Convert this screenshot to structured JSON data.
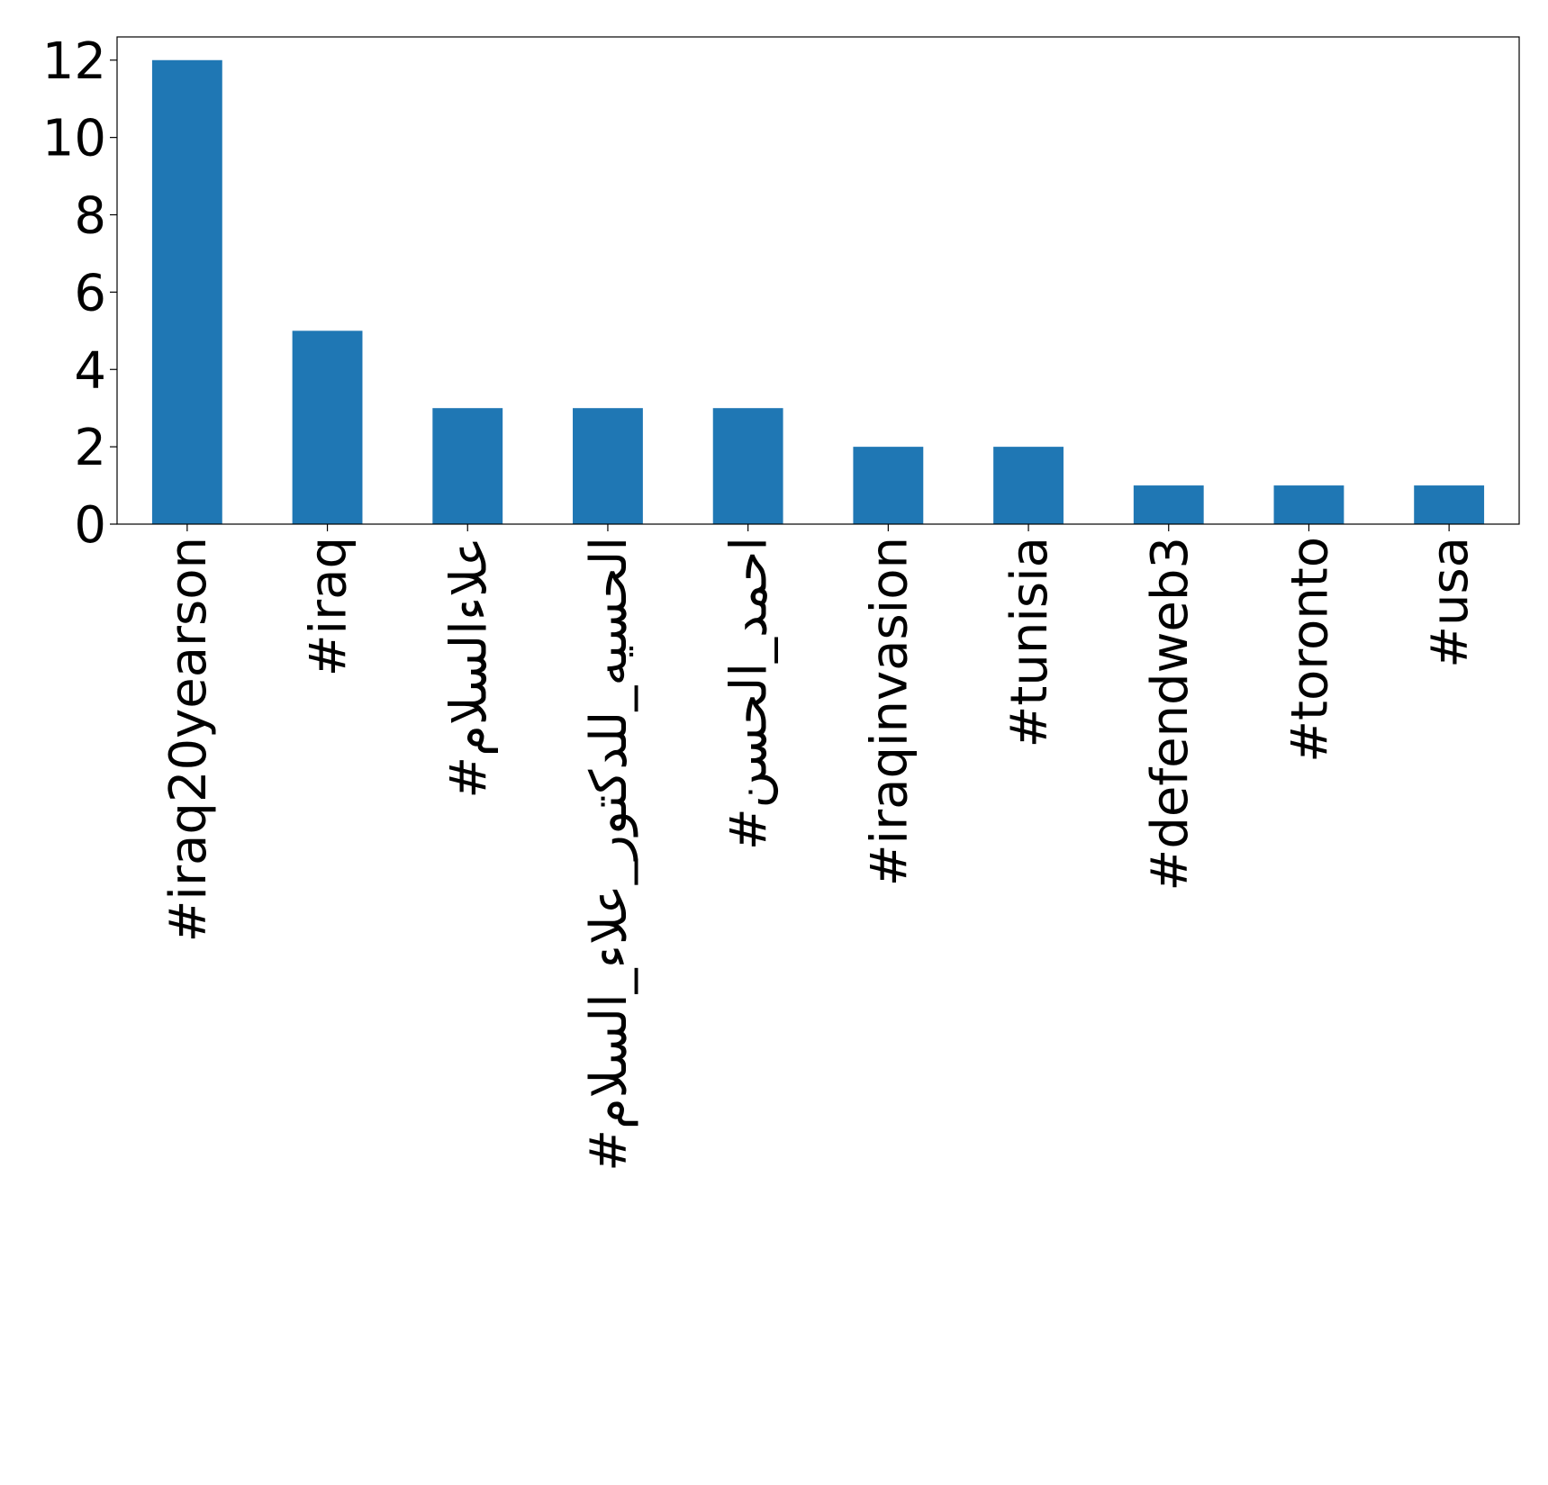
{
  "chart_data": {
    "type": "bar",
    "categories": [
      "#iraq20yearson",
      "#iraq",
      "#علاءالسلام",
      "#الحسيه_للدكتور_علاء_السلام",
      "#احمد_الحسن",
      "#iraqinvasion",
      "#tunisia",
      "#defendweb3",
      "#toronto",
      "#usa"
    ],
    "values": [
      12,
      5,
      3,
      3,
      3,
      2,
      2,
      1,
      1,
      1
    ],
    "color": "#1f77b4",
    "ylim": [
      0,
      12.6
    ],
    "yticks": [
      0,
      2,
      4,
      6,
      8,
      10,
      12
    ],
    "grid": false
  }
}
